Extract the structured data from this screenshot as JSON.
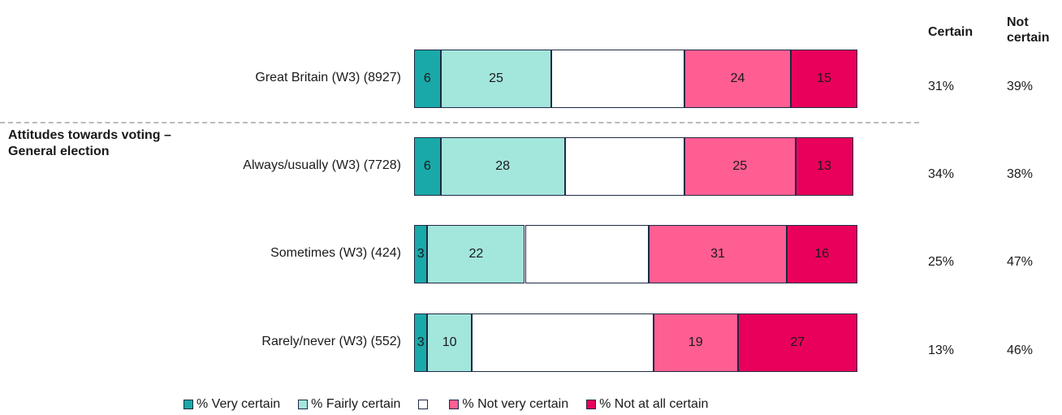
{
  "chart_data": {
    "type": "stacked_bar_horizontal",
    "categories": [
      "Great Britain (W3) (8927)",
      "Always/usually (W3) (7728)",
      "Sometimes (W3) (424)",
      "Rarely/never (W3) (552)"
    ],
    "group_label": [
      "Attitudes towards voting –",
      "General election"
    ],
    "xlim": [
      0,
      100
    ],
    "series": [
      {
        "name": "% Very certain",
        "color": "#1aa9a9",
        "data_labels": true,
        "values": [
          6,
          6,
          3,
          3
        ]
      },
      {
        "name": "% Fairly certain",
        "color": "#a3e6dc",
        "data_labels": true,
        "values": [
          25,
          28,
          22,
          10
        ]
      },
      {
        "color": "#ffffff",
        "data_labels": false,
        "values": [
          30,
          27,
          28,
          41
        ]
      },
      {
        "name": "% Not very certain",
        "color": "#ff5e93",
        "data_labels": true,
        "values": [
          24,
          25,
          31,
          19
        ]
      },
      {
        "name": "% Not at all certain",
        "color": "#e8005a",
        "data_labels": true,
        "values": [
          15,
          13,
          16,
          27
        ]
      }
    ],
    "columns": [
      {
        "header": "Certain",
        "values": [
          31,
          34,
          25,
          13
        ],
        "value_labels": [
          "31%",
          "34%",
          "25%",
          "13%"
        ]
      },
      {
        "header": "Not certain",
        "values": [
          39,
          38,
          47,
          46
        ],
        "value_labels": [
          "39%",
          "38%",
          "47%",
          "46%"
        ]
      }
    ]
  }
}
